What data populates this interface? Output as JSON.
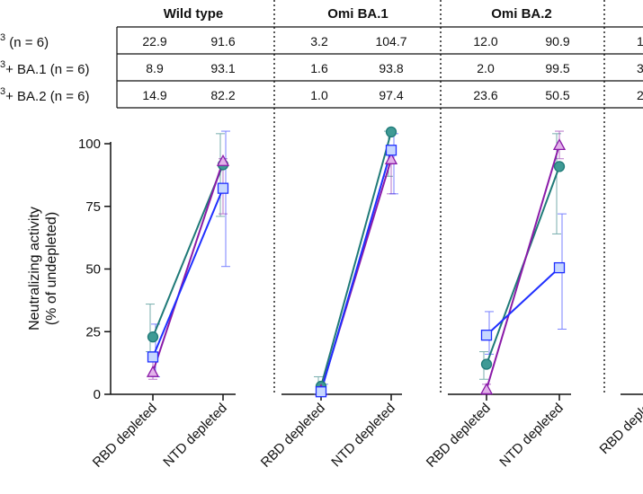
{
  "table": {
    "columns": [
      "Wild type",
      "Omi BA.1",
      "Omi BA.2"
    ],
    "rows": [
      {
        "label_prefix": "3",
        "label": " (n = 6)",
        "values": [
          "22.9",
          "91.6",
          "3.2",
          "104.7",
          "12.0",
          "90.9"
        ],
        "cutoff": "1"
      },
      {
        "label_prefix": "3",
        "label": "+ BA.1 (n = 6)",
        "values": [
          "8.9",
          "93.1",
          "1.6",
          "93.8",
          "2.0",
          "99.5"
        ],
        "cutoff": "3"
      },
      {
        "label_prefix": "3",
        "label": "+ BA.2 (n = 6)",
        "values": [
          "14.9",
          "82.2",
          "1.0",
          "97.4",
          "23.6",
          "50.5"
        ],
        "cutoff": "2"
      }
    ]
  },
  "chart_data": {
    "type": "line",
    "ylabel_line1": "Neutralizing activity",
    "ylabel_line2": "(% of undepleted)",
    "ylim": [
      0,
      100
    ],
    "yticks": [
      "0",
      "25",
      "50",
      "75",
      "100"
    ],
    "categories": [
      "RBD depleted",
      "NTD depleted"
    ],
    "cutoff_label": "RBD deple",
    "panels": [
      {
        "name": "Wild type",
        "series": [
          {
            "color": "#1f7a78",
            "marker": "circle",
            "values": [
              22.9,
              91.6
            ],
            "err_low": [
              17,
              71
            ],
            "err_high": [
              36,
              104
            ]
          },
          {
            "color": "#8a1aa8",
            "marker": "triangle",
            "values": [
              8.9,
              93.1
            ],
            "err_low": [
              6,
              72
            ],
            "err_high": [
              16,
              94
            ]
          },
          {
            "color": "#1f2fff",
            "marker": "square",
            "values": [
              14.9,
              82.2
            ],
            "err_low": [
              7,
              51
            ],
            "err_high": [
              28,
              105
            ]
          }
        ]
      },
      {
        "name": "Omi BA.1",
        "series": [
          {
            "color": "#1f7a78",
            "marker": "circle",
            "values": [
              3.2,
              104.7
            ],
            "err_low": [
              0,
              87
            ],
            "err_high": [
              7,
              105
            ]
          },
          {
            "color": "#8a1aa8",
            "marker": "triangle",
            "values": [
              1.6,
              93.8
            ],
            "err_low": [
              0,
              80
            ],
            "err_high": [
              3,
              98
            ]
          },
          {
            "color": "#1f2fff",
            "marker": "square",
            "values": [
              1.0,
              97.4
            ],
            "err_low": [
              0,
              80
            ],
            "err_high": [
              4,
              104
            ]
          }
        ]
      },
      {
        "name": "Omi BA.2",
        "series": [
          {
            "color": "#1f7a78",
            "marker": "circle",
            "values": [
              12.0,
              90.9
            ],
            "err_low": [
              6,
              64
            ],
            "err_high": [
              17,
              104
            ]
          },
          {
            "color": "#8a1aa8",
            "marker": "triangle",
            "values": [
              2.0,
              99.5
            ],
            "err_low": [
              0,
              94
            ],
            "err_high": [
              4,
              105
            ]
          },
          {
            "color": "#1f2fff",
            "marker": "square",
            "values": [
              23.6,
              50.5
            ],
            "err_low": [
              16,
              26
            ],
            "err_high": [
              33,
              72
            ]
          }
        ]
      }
    ]
  }
}
